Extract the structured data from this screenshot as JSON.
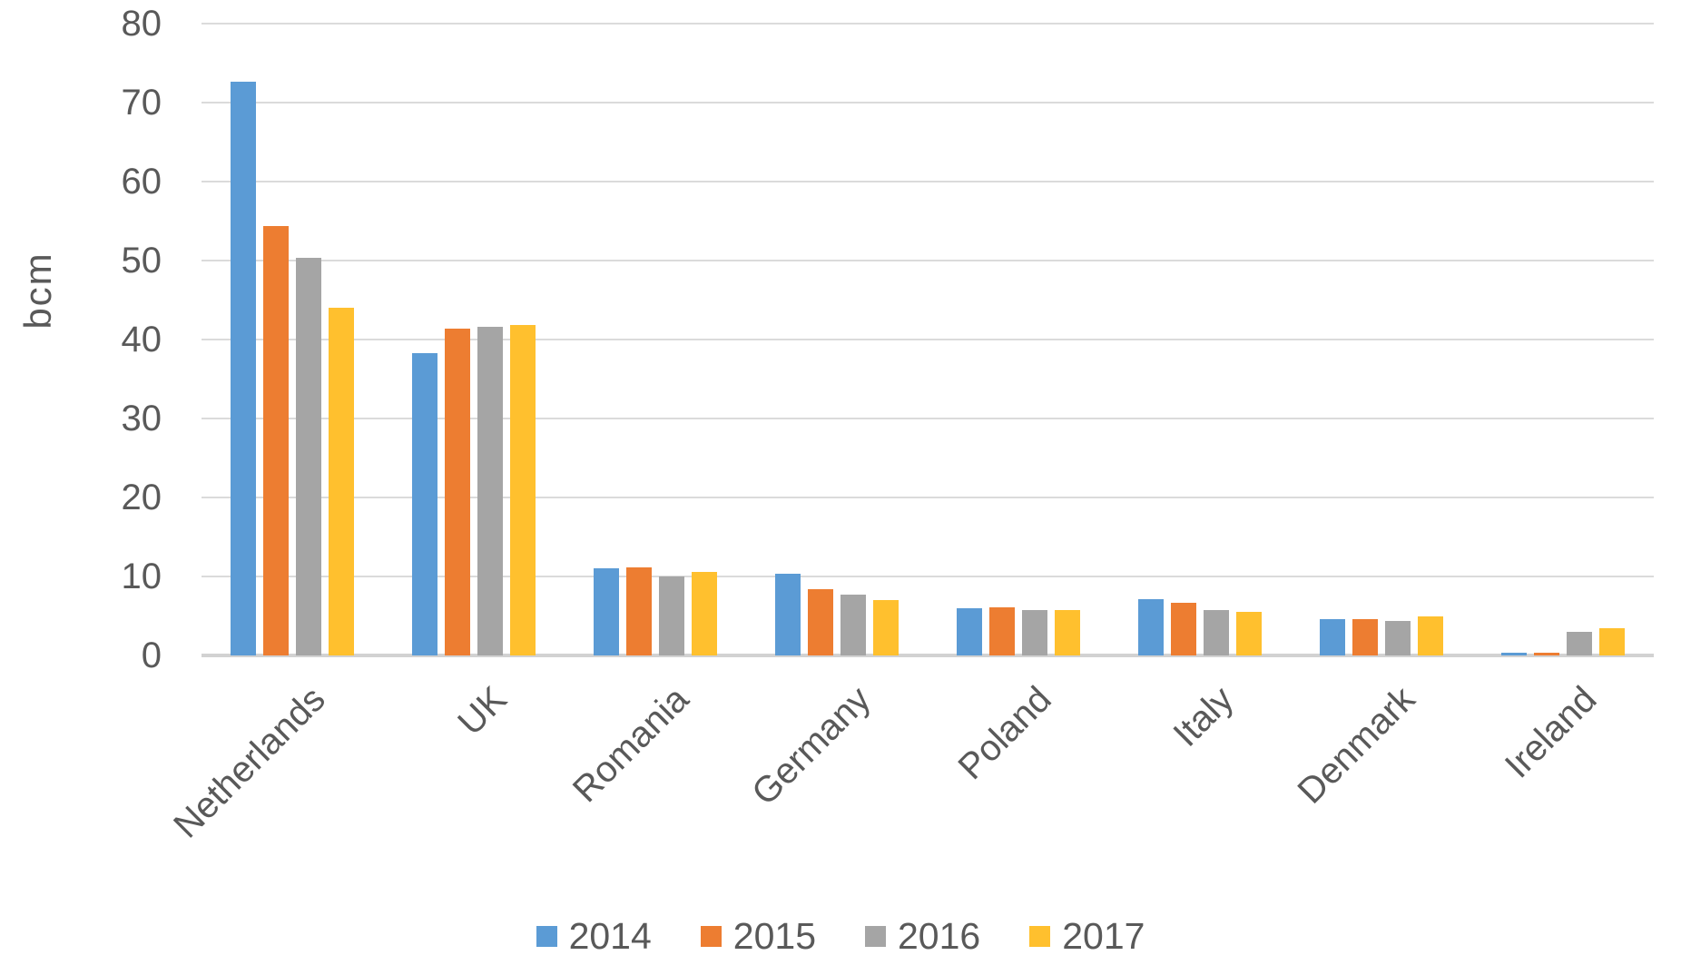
{
  "chart_data": {
    "type": "bar",
    "title": "",
    "ylabel": "bcm",
    "xlabel": "",
    "categories": [
      "Netherlands",
      "UK",
      "Romania",
      "Germany",
      "Poland",
      "Italy",
      "Denmark",
      "Ireland"
    ],
    "series": [
      {
        "name": "2014",
        "color": "#5B9BD5",
        "values": [
          72.7,
          38.3,
          11.0,
          10.3,
          6.0,
          7.1,
          4.6,
          0.4
        ]
      },
      {
        "name": "2015",
        "color": "#ED7D31",
        "values": [
          54.4,
          41.4,
          11.1,
          8.4,
          6.1,
          6.7,
          4.6,
          0.4
        ]
      },
      {
        "name": "2016",
        "color": "#A5A5A5",
        "values": [
          50.4,
          41.6,
          10.0,
          7.7,
          5.8,
          5.8,
          4.4,
          3.0
        ]
      },
      {
        "name": "2017",
        "color": "#FFC02E",
        "values": [
          44.0,
          41.8,
          10.6,
          7.0,
          5.8,
          5.5,
          4.9,
          3.4
        ]
      }
    ],
    "ylim": [
      0,
      80
    ],
    "ytick_step": 10,
    "yticks": [
      "0",
      "10",
      "20",
      "30",
      "40",
      "50",
      "60",
      "70",
      "80"
    ],
    "grid": true,
    "legend_position": "bottom",
    "colors": {
      "grid": "#DBDBDB",
      "axis": "#D2D2D2",
      "text": "#595959"
    }
  }
}
